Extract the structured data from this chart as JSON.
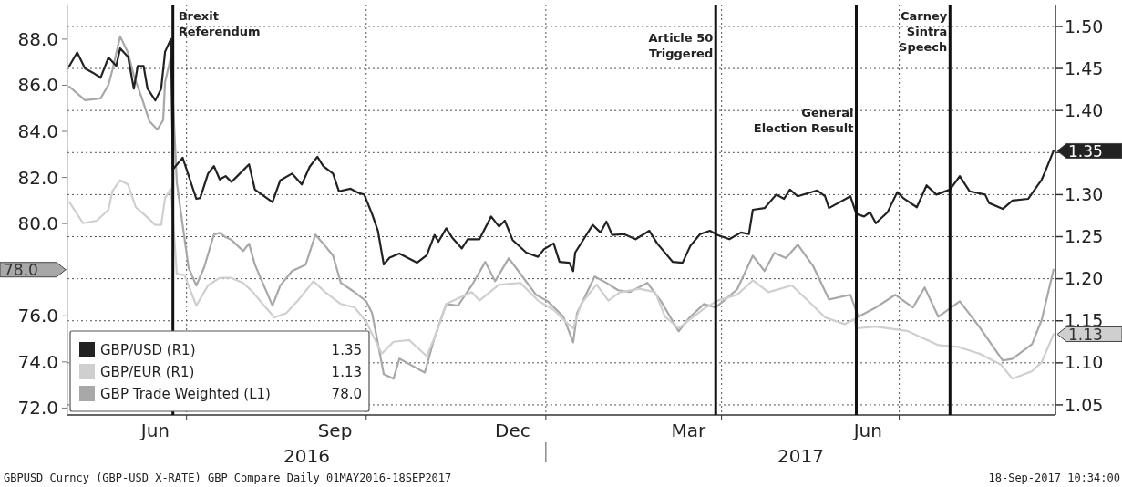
{
  "chart_data": {
    "type": "line",
    "xlim": [
      "2016-05-01",
      "2017-09-19"
    ],
    "xticks": [
      {
        "value": "2016-06-15",
        "label": "Jun"
      },
      {
        "value": "2016-07-01",
        "label": null
      },
      {
        "value": "2016-09-15",
        "label": "Sep"
      },
      {
        "value": "2016-10-01",
        "label": null
      },
      {
        "value": "2016-12-15",
        "label": "Dec"
      },
      {
        "value": "2017-01-01",
        "label": null
      },
      {
        "value": "2017-03-15",
        "label": "Mar"
      },
      {
        "value": "2017-04-01",
        "label": null
      },
      {
        "value": "2017-06-15",
        "label": "Jun"
      },
      {
        "value": "2017-07-01",
        "label": null
      }
    ],
    "ylim": [
      71.7,
      89.5
    ],
    "yticks": [
      {
        "value": 72,
        "label": "72.0"
      },
      {
        "value": 74,
        "label": "74.0"
      },
      {
        "value": 76,
        "label": "76.0"
      },
      {
        "value": 78,
        "label": null
      },
      {
        "value": 80,
        "label": "80.0"
      },
      {
        "value": 82,
        "label": "82.0"
      },
      {
        "value": 84,
        "label": "84.0"
      },
      {
        "value": 86,
        "label": "86.0"
      },
      {
        "value": 88,
        "label": "88.0"
      }
    ],
    "y2lim": [
      1.038,
      1.526
    ],
    "y2ticks": [
      {
        "value": 1.05,
        "label": "1.05"
      },
      {
        "value": 1.1,
        "label": "1.10"
      },
      {
        "value": 1.15,
        "label": "1.15"
      },
      {
        "value": 1.2,
        "label": "1.20"
      },
      {
        "value": 1.25,
        "label": "1.25"
      },
      {
        "value": 1.3,
        "label": "1.30"
      },
      {
        "value": 1.35,
        "label": null
      },
      {
        "value": 1.4,
        "label": "1.40"
      },
      {
        "value": 1.45,
        "label": "1.45"
      },
      {
        "value": 1.5,
        "label": "1.50"
      }
    ],
    "grid": true,
    "legend": "bottom left",
    "series": [
      {
        "name": "GBP/USD (R1)",
        "color": "#222222",
        "axis": "y2",
        "x": [
          "2016-05-02",
          "2016-05-06",
          "2016-05-10",
          "2016-05-14",
          "2016-05-18",
          "2016-05-22",
          "2016-05-26",
          "2016-05-28",
          "2016-06-01",
          "2016-06-04",
          "2016-06-06",
          "2016-06-09",
          "2016-06-11",
          "2016-06-15",
          "2016-06-18",
          "2016-06-20",
          "2016-06-23",
          "2016-06-24",
          "2016-06-29",
          "2016-07-06",
          "2016-07-08",
          "2016-07-12",
          "2016-07-15",
          "2016-07-18",
          "2016-07-21",
          "2016-07-24",
          "2016-07-27",
          "2016-08-02",
          "2016-08-05",
          "2016-08-14",
          "2016-08-18",
          "2016-08-24",
          "2016-08-29",
          "2016-09-02",
          "2016-09-06",
          "2016-09-09",
          "2016-09-14",
          "2016-09-17",
          "2016-09-23",
          "2016-09-27",
          "2016-09-30",
          "2016-10-04",
          "2016-10-07",
          "2016-10-10",
          "2016-10-13",
          "2016-10-18",
          "2016-10-27",
          "2016-11-01",
          "2016-11-05",
          "2016-11-07",
          "2016-11-11",
          "2016-11-14",
          "2016-11-19",
          "2016-11-22",
          "2016-11-28",
          "2016-12-04",
          "2016-12-08",
          "2016-12-11",
          "2016-12-15",
          "2016-12-22",
          "2016-12-28",
          "2016-12-31",
          "2017-01-05",
          "2017-01-08",
          "2017-01-13",
          "2017-01-15",
          "2017-01-16",
          "2017-01-22",
          "2017-01-25",
          "2017-01-29",
          "2017-02-01",
          "2017-02-04",
          "2017-02-10",
          "2017-02-16",
          "2017-02-23",
          "2017-02-27",
          "2017-03-07",
          "2017-03-12",
          "2017-03-16",
          "2017-03-21",
          "2017-03-26",
          "2017-03-30",
          "2017-04-05",
          "2017-04-11",
          "2017-04-15",
          "2017-04-17",
          "2017-04-23",
          "2017-04-29",
          "2017-05-03",
          "2017-05-06",
          "2017-05-10",
          "2017-05-20",
          "2017-05-24",
          "2017-05-26",
          "2017-06-06",
          "2017-06-09",
          "2017-06-13",
          "2017-06-16",
          "2017-06-19",
          "2017-06-25",
          "2017-06-30",
          "2017-07-03",
          "2017-07-10",
          "2017-07-15",
          "2017-07-20",
          "2017-07-27",
          "2017-08-01",
          "2017-08-06",
          "2017-08-14",
          "2017-08-16",
          "2017-08-23",
          "2017-08-28",
          "2017-09-05",
          "2017-09-12",
          "2017-09-14",
          "2017-09-18"
        ],
        "values": [
          1.453,
          1.469,
          1.45,
          1.445,
          1.439,
          1.463,
          1.453,
          1.474,
          1.464,
          1.426,
          1.453,
          1.453,
          1.426,
          1.412,
          1.426,
          1.47,
          1.485,
          1.33,
          1.344,
          1.295,
          1.296,
          1.325,
          1.334,
          1.318,
          1.322,
          1.315,
          1.322,
          1.336,
          1.306,
          1.291,
          1.317,
          1.325,
          1.312,
          1.333,
          1.345,
          1.334,
          1.325,
          1.304,
          1.307,
          1.302,
          1.3,
          1.277,
          1.257,
          1.217,
          1.225,
          1.23,
          1.219,
          1.228,
          1.252,
          1.244,
          1.26,
          1.249,
          1.236,
          1.247,
          1.247,
          1.274,
          1.262,
          1.269,
          1.246,
          1.231,
          1.226,
          1.235,
          1.242,
          1.22,
          1.219,
          1.209,
          1.231,
          1.253,
          1.264,
          1.255,
          1.268,
          1.252,
          1.253,
          1.247,
          1.257,
          1.242,
          1.22,
          1.219,
          1.239,
          1.253,
          1.257,
          1.252,
          1.247,
          1.255,
          1.253,
          1.282,
          1.284,
          1.3,
          1.295,
          1.306,
          1.298,
          1.305,
          1.298,
          1.284,
          1.298,
          1.277,
          1.274,
          1.279,
          1.266,
          1.279,
          1.303,
          1.296,
          1.285,
          1.311,
          1.3,
          1.306,
          1.322,
          1.304,
          1.3,
          1.29,
          1.283,
          1.293,
          1.295,
          1.318,
          1.329,
          1.352
        ],
        "value_labels": [
          null,
          null,
          null,
          null,
          null,
          null,
          null,
          null,
          null,
          null,
          null,
          null,
          null,
          null,
          null,
          null,
          null,
          null,
          null,
          null,
          null,
          null,
          null,
          null,
          null,
          null,
          null,
          null,
          null,
          null,
          null,
          null,
          null,
          null,
          null,
          null,
          null,
          null,
          null,
          null,
          null,
          null,
          null,
          null,
          null,
          null,
          null,
          null,
          null,
          null,
          null,
          null,
          null,
          null,
          null,
          null,
          null,
          null,
          null,
          null,
          null,
          null,
          null,
          null,
          null,
          null,
          null,
          null,
          null,
          null,
          null,
          null,
          null,
          null,
          null,
          null,
          null,
          null,
          null,
          null,
          null,
          null,
          null,
          null,
          null,
          null,
          null,
          null,
          null,
          null,
          null,
          null,
          null,
          null,
          null,
          null,
          null,
          null,
          null,
          null,
          null,
          null,
          null,
          null,
          null,
          null,
          null,
          null,
          null,
          null,
          null,
          null,
          null,
          null,
          null,
          "1.35"
        ]
      },
      {
        "name": "GBP/EUR (R1)",
        "color": "#cfcfcf",
        "axis": "y2",
        "x": [
          "2016-05-02",
          "2016-05-09",
          "2016-05-16",
          "2016-05-22",
          "2016-05-24",
          "2016-05-28",
          "2016-06-01",
          "2016-06-05",
          "2016-06-09",
          "2016-06-15",
          "2016-06-18",
          "2016-06-20",
          "2016-06-23",
          "2016-06-26",
          "2016-06-30",
          "2016-07-06",
          "2016-07-12",
          "2016-07-18",
          "2016-07-24",
          "2016-07-30",
          "2016-08-04",
          "2016-08-09",
          "2016-08-15",
          "2016-08-21",
          "2016-08-27",
          "2016-09-04",
          "2016-09-10",
          "2016-09-18",
          "2016-09-25",
          "2016-10-01",
          "2016-10-09",
          "2016-10-15",
          "2016-10-23",
          "2016-11-01",
          "2016-11-05",
          "2016-11-11",
          "2016-11-24",
          "2016-11-28",
          "2016-12-08",
          "2016-12-19",
          "2016-12-28",
          "2017-01-05",
          "2017-01-11",
          "2017-01-15",
          "2017-01-19",
          "2017-01-27",
          "2017-02-02",
          "2017-02-08",
          "2017-02-18",
          "2017-02-26",
          "2017-03-03",
          "2017-03-10",
          "2017-03-16",
          "2017-03-24",
          "2017-03-30",
          "2017-04-09",
          "2017-04-17",
          "2017-04-25",
          "2017-05-07",
          "2017-05-17",
          "2017-05-24",
          "2017-06-03",
          "2017-06-08",
          "2017-06-09",
          "2017-06-19",
          "2017-07-05",
          "2017-07-21",
          "2017-07-31",
          "2017-08-11",
          "2017-08-22",
          "2017-08-28",
          "2017-09-07",
          "2017-09-12",
          "2017-09-18"
        ],
        "values": [
          1.291,
          1.266,
          1.269,
          1.282,
          1.304,
          1.317,
          1.312,
          1.285,
          1.277,
          1.264,
          1.264,
          1.296,
          1.307,
          1.206,
          1.204,
          1.168,
          1.192,
          1.201,
          1.201,
          1.195,
          1.184,
          1.17,
          1.154,
          1.159,
          1.174,
          1.197,
          1.184,
          1.17,
          1.166,
          1.149,
          1.111,
          1.125,
          1.127,
          1.108,
          1.13,
          1.17,
          1.184,
          1.174,
          1.193,
          1.195,
          1.174,
          1.163,
          1.149,
          1.141,
          1.17,
          1.193,
          1.174,
          1.184,
          1.188,
          1.184,
          1.155,
          1.141,
          1.152,
          1.166,
          1.174,
          1.181,
          1.198,
          1.184,
          1.192,
          1.17,
          1.154,
          1.146,
          1.152,
          1.141,
          1.143,
          1.138,
          1.121,
          1.119,
          1.111,
          1.098,
          1.081,
          1.09,
          1.101,
          1.134
        ],
        "value_labels": [
          null,
          null,
          null,
          null,
          null,
          null,
          null,
          null,
          null,
          null,
          null,
          null,
          null,
          null,
          null,
          null,
          null,
          null,
          null,
          null,
          null,
          null,
          null,
          null,
          null,
          null,
          null,
          null,
          null,
          null,
          null,
          null,
          null,
          null,
          null,
          null,
          null,
          null,
          null,
          null,
          null,
          null,
          null,
          null,
          null,
          null,
          null,
          null,
          null,
          null,
          null,
          null,
          null,
          null,
          null,
          null,
          null,
          null,
          null,
          null,
          null,
          null,
          null,
          null,
          null,
          null,
          null,
          null,
          null,
          null,
          null,
          null,
          null,
          "1.13"
        ]
      },
      {
        "name": "GBP Trade Weighted (L1)",
        "color": "#a8a8a8",
        "axis": "y",
        "x": [
          "2016-05-02",
          "2016-05-10",
          "2016-05-18",
          "2016-05-22",
          "2016-05-24",
          "2016-05-28",
          "2016-06-01",
          "2016-06-04",
          "2016-06-08",
          "2016-06-12",
          "2016-06-16",
          "2016-06-19",
          "2016-06-20",
          "2016-06-23",
          "2016-06-26",
          "2016-07-02",
          "2016-07-06",
          "2016-07-10",
          "2016-07-15",
          "2016-07-18",
          "2016-07-21",
          "2016-07-24",
          "2016-07-30",
          "2016-08-02",
          "2016-08-05",
          "2016-08-14",
          "2016-08-18",
          "2016-08-24",
          "2016-08-31",
          "2016-09-05",
          "2016-09-09",
          "2016-09-14",
          "2016-09-18",
          "2016-09-25",
          "2016-10-01",
          "2016-10-04",
          "2016-10-10",
          "2016-10-15",
          "2016-10-18",
          "2016-10-24",
          "2016-10-31",
          "2016-11-05",
          "2016-11-11",
          "2016-11-17",
          "2016-11-24",
          "2016-12-01",
          "2016-12-06",
          "2016-12-13",
          "2016-12-19",
          "2016-12-27",
          "2017-01-02",
          "2017-01-10",
          "2017-01-15",
          "2017-01-17",
          "2017-01-26",
          "2017-02-01",
          "2017-02-07",
          "2017-02-13",
          "2017-02-22",
          "2017-03-01",
          "2017-03-10",
          "2017-03-16",
          "2017-03-23",
          "2017-03-29",
          "2017-04-09",
          "2017-04-17",
          "2017-04-23",
          "2017-04-28",
          "2017-05-04",
          "2017-05-10",
          "2017-05-18",
          "2017-05-26",
          "2017-06-06",
          "2017-06-10",
          "2017-06-19",
          "2017-06-29",
          "2017-07-08",
          "2017-07-14",
          "2017-07-21",
          "2017-08-01",
          "2017-08-11",
          "2017-08-23",
          "2017-08-28",
          "2017-09-07",
          "2017-09-12",
          "2017-09-18"
        ],
        "values": [
          85.94,
          85.35,
          85.43,
          86.02,
          86.65,
          88.12,
          87.41,
          86.42,
          85.47,
          84.44,
          84.08,
          84.48,
          86.14,
          87.25,
          81.78,
          78.1,
          77.31,
          78.1,
          79.52,
          79.6,
          79.41,
          79.29,
          78.81,
          79.13,
          78.22,
          76.44,
          77.31,
          77.94,
          78.22,
          79.52,
          79.13,
          78.61,
          77.43,
          77.03,
          76.63,
          76.12,
          73.47,
          73.27,
          74.14,
          73.86,
          73.54,
          75.05,
          76.51,
          76.44,
          77.31,
          78.34,
          77.5,
          78.5,
          77.82,
          76.91,
          76.63,
          75.96,
          74.85,
          76.12,
          77.7,
          77.43,
          77.11,
          77.03,
          77.43,
          76.63,
          75.33,
          75.96,
          76.51,
          76.36,
          77.15,
          78.61,
          77.94,
          78.73,
          78.5,
          79.09,
          78.14,
          76.71,
          76.91,
          75.96,
          76.36,
          76.91,
          76.36,
          77.23,
          75.96,
          76.63,
          75.52,
          74.06,
          74.14,
          74.77,
          75.84,
          78.0
        ]
      }
    ],
    "ref_lines": [
      {
        "axis": "x",
        "value": "2016-06-24",
        "label": "Brexit\nReferendum",
        "color": "#111111"
      },
      {
        "axis": "x",
        "value": "2017-03-29",
        "label": "Article 50\nTriggered",
        "color": "#111111"
      },
      {
        "axis": "x",
        "value": "2017-06-09",
        "label": "General\nElection Result",
        "color": "#111111"
      },
      {
        "axis": "x",
        "value": "2017-07-27",
        "label": "Carney\nSintra\nSpeech",
        "color": "#111111"
      }
    ],
    "annotations": [
      "2016",
      "2017",
      "1.35",
      "1.13",
      "78.0",
      "GBPUSD Curncy (GBP-USD X-RATE) GBP Compare  Daily 01MAY2016-18SEP2017",
      "18-Sep-2017 10:34:00"
    ]
  }
}
